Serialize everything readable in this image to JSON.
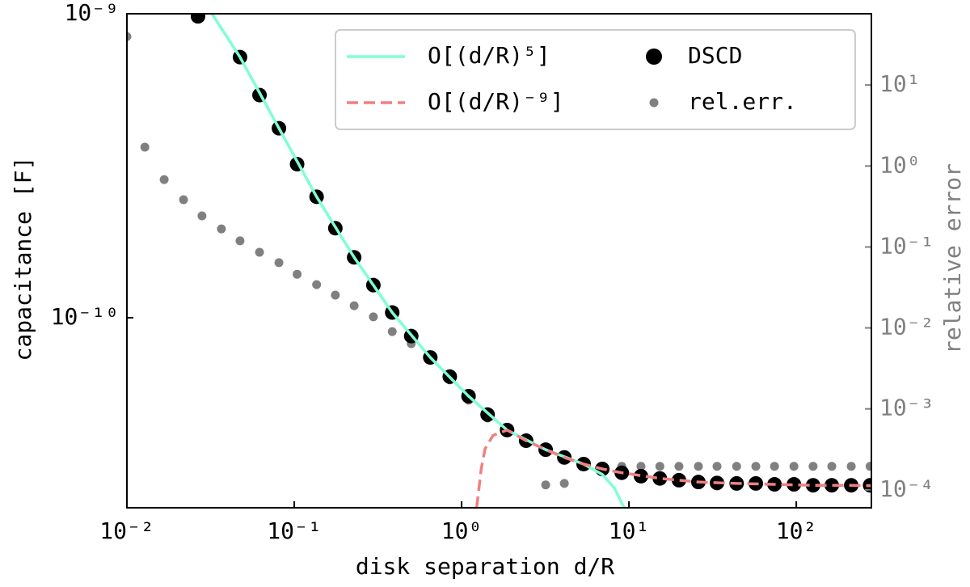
{
  "chart_data": {
    "type": "line",
    "xlabel": "disk separation d/R",
    "ylabel": "capacitance [F]",
    "y2label": "relative error",
    "xscale": "log",
    "yscale": "log",
    "y2scale": "log",
    "xlim": [
      0.01,
      281
    ],
    "ylim": [
      2.37e-11,
      1e-09
    ],
    "y2lim": [
      6e-05,
      76
    ],
    "xticks": [
      {
        "value": 0.01,
        "label": "10⁻²"
      },
      {
        "value": 0.1,
        "label": "10⁻¹"
      },
      {
        "value": 1,
        "label": "10⁰"
      },
      {
        "value": 10,
        "label": "10¹"
      },
      {
        "value": 100,
        "label": "10²"
      }
    ],
    "yticks": [
      {
        "value": 1e-10,
        "label": "10⁻¹⁰"
      },
      {
        "value": 1e-09,
        "label": "10⁻⁹"
      }
    ],
    "y2ticks": [
      {
        "value": 0.0001,
        "label": "10⁻⁴"
      },
      {
        "value": 0.001,
        "label": "10⁻³"
      },
      {
        "value": 0.01,
        "label": "10⁻²"
      },
      {
        "value": 0.1,
        "label": "10⁻¹"
      },
      {
        "value": 1,
        "label": "10⁰"
      },
      {
        "value": 10,
        "label": "10¹"
      }
    ],
    "legend": "upper right",
    "y2color": "#808080",
    "series": [
      {
        "name": "O[(d/R)⁵]",
        "type": "line",
        "linestyle": "solid",
        "color": "#7fffd4",
        "axis": "y",
        "x": [
          0.0322,
          0.0474,
          0.081,
          0.136,
          0.228,
          0.385,
          0.65,
          1.1,
          1.87,
          3.18,
          5.36,
          6.93,
          8.19,
          9.36
        ],
        "values": [
          1e-09,
          7.2e-10,
          4.2e-10,
          2.5e-10,
          1.58e-10,
          1.04e-10,
          7.4e-11,
          5.52e-11,
          4.27e-11,
          3.68e-11,
          3.3e-11,
          3.05e-11,
          2.75e-11,
          2.37e-11
        ]
      },
      {
        "name": "O[(d/R)⁻⁹]",
        "type": "line",
        "linestyle": "dashed",
        "color": "#f08080",
        "axis": "y",
        "x": [
          1.23,
          1.31,
          1.38,
          1.54,
          1.87,
          2.43,
          3.18,
          4.11,
          5.36,
          6.93,
          9.06,
          15.3,
          26.0,
          44.0,
          74.1,
          126,
          213,
          281
        ],
        "values": [
          2.37e-11,
          3.18e-11,
          3.7e-11,
          4.1e-11,
          4.27e-11,
          3.94e-11,
          3.68e-11,
          3.47e-11,
          3.3e-11,
          3.18e-11,
          3.09e-11,
          2.96e-11,
          2.88e-11,
          2.85e-11,
          2.83e-11,
          2.81e-11,
          2.81e-11,
          2.8e-11
        ]
      },
      {
        "name": "DSCD",
        "type": "scatter",
        "color": "#000000",
        "axis": "y",
        "x": [
          0.0266,
          0.0474,
          0.062,
          0.081,
          0.104,
          0.136,
          0.176,
          0.228,
          0.297,
          0.385,
          0.5,
          0.65,
          0.85,
          1.1,
          1.43,
          1.87,
          2.43,
          3.18,
          4.11,
          5.36,
          6.93,
          9.06,
          11.8,
          15.3,
          19.9,
          26.0,
          33.6,
          44.0,
          57.3,
          74.1,
          96.8,
          126,
          163,
          213,
          276
        ],
        "values": [
          9.8e-10,
          7.2e-10,
          5.4e-10,
          4.2e-10,
          3.2e-10,
          2.5e-10,
          1.97e-10,
          1.58e-10,
          1.28e-10,
          1.04e-10,
          8.7e-11,
          7.4e-11,
          6.4e-11,
          5.52e-11,
          4.8e-11,
          4.27e-11,
          3.94e-11,
          3.68e-11,
          3.47e-11,
          3.3e-11,
          3.18e-11,
          3.09e-11,
          3.01e-11,
          2.96e-11,
          2.92e-11,
          2.88e-11,
          2.86e-11,
          2.85e-11,
          2.85e-11,
          2.83e-11,
          2.83e-11,
          2.81e-11,
          2.81e-11,
          2.81e-11,
          2.81e-11
        ]
      },
      {
        "name": "rel.err.",
        "type": "scatter",
        "color": "#808080",
        "axis": "y2",
        "x": [
          0.01,
          0.0128,
          0.0167,
          0.0218,
          0.0281,
          0.0367,
          0.0474,
          0.062,
          0.081,
          0.104,
          0.136,
          0.176,
          0.228,
          0.297,
          0.385,
          0.5,
          0.65,
          0.85,
          1.1,
          1.43,
          1.87,
          2.43,
          3.18,
          4.11,
          5.36,
          6.93,
          9.06,
          11.8,
          15.3,
          19.9,
          26.0,
          33.6,
          44.0,
          57.3,
          74.1,
          96.8,
          126,
          163,
          213,
          276
        ],
        "values": [
          39.7,
          1.71,
          0.68,
          0.383,
          0.242,
          0.167,
          0.119,
          0.086,
          0.064,
          0.046,
          0.0343,
          0.0254,
          0.0188,
          0.0137,
          0.009,
          0.0064,
          0.004,
          0.00228,
          0.00128,
          0.00077,
          0.00055,
          0.00039,
          0.000115,
          0.00012,
          0.000195,
          0.000195,
          0.000195,
          0.000195,
          0.000195,
          0.000195,
          0.000195,
          0.000195,
          0.000195,
          0.000195,
          0.000195,
          0.000195,
          0.000195,
          0.000195,
          0.000195,
          0.000195
        ]
      }
    ]
  }
}
